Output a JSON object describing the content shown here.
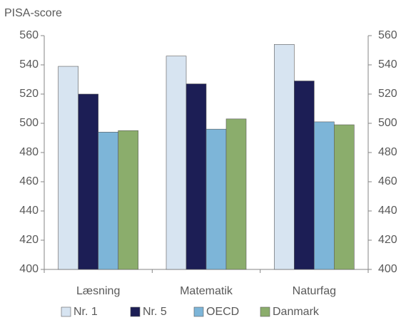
{
  "chart_data": {
    "type": "bar",
    "y_label": "PISA-score",
    "categories": [
      "Læsning",
      "Matematik",
      "Naturfag"
    ],
    "series": [
      {
        "name": "Nr. 1",
        "color": "#d7e4f1",
        "values": [
          539,
          546,
          554
        ]
      },
      {
        "name": "Nr. 5",
        "color": "#1c1e55",
        "values": [
          520,
          527,
          529
        ]
      },
      {
        "name": "OECD",
        "color": "#7db5d8",
        "values": [
          494,
          496,
          501
        ]
      },
      {
        "name": "Danmark",
        "color": "#8bad6c",
        "values": [
          495,
          503,
          499
        ]
      }
    ],
    "ylim": [
      400,
      560
    ],
    "yticks": [
      400,
      420,
      440,
      460,
      480,
      500,
      520,
      540,
      560
    ],
    "y2lim": [
      400,
      560
    ],
    "y2ticks": [
      400,
      420,
      440,
      460,
      480,
      500,
      520,
      540,
      560
    ],
    "grid": false,
    "legend": "bottom"
  }
}
